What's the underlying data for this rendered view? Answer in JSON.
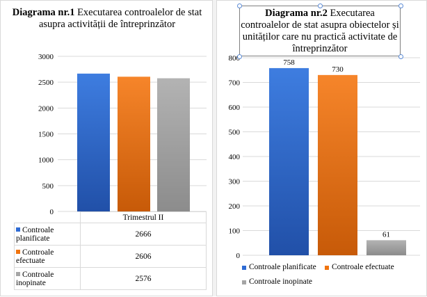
{
  "colors": {
    "planned": "#2e6bd4",
    "performed": "#f0740f",
    "unscheduled": "#a5a5a5",
    "grid": "#d9d9d9"
  },
  "chart_data": [
    {
      "type": "bar",
      "title_bold": "Diagrama nr.1",
      "title_rest": "Executarea controalelor de stat asupra activității de întreprinzător",
      "categories": [
        "Trimestrul II"
      ],
      "series": [
        {
          "name": "Controale planificate",
          "values": [
            2666
          ]
        },
        {
          "name": "Controale efectuate",
          "values": [
            2606
          ]
        },
        {
          "name": "Controale inopinate",
          "values": [
            2576
          ]
        }
      ],
      "ylim": [
        0,
        3000
      ],
      "yticks": [
        0,
        500,
        1000,
        1500,
        2000,
        2500,
        3000
      ],
      "data_table": true,
      "legend": "data-table"
    },
    {
      "type": "bar",
      "title_bold": "Diagrama nr.2",
      "title_rest": "Executarea controalelor de stat asupra obiectelor și unităților care nu practică activitate de întreprinzător",
      "series": [
        {
          "name": "Controale planificate",
          "values": [
            758
          ],
          "label": "758"
        },
        {
          "name": "Controale efectuate",
          "values": [
            730
          ],
          "label": "730"
        },
        {
          "name": "Controale inopinate",
          "values": [
            61
          ],
          "label": "61"
        }
      ],
      "ylim": [
        0,
        800
      ],
      "yticks": [
        0,
        100,
        200,
        300,
        400,
        500,
        600,
        700,
        800
      ],
      "legend": "bottom"
    }
  ]
}
